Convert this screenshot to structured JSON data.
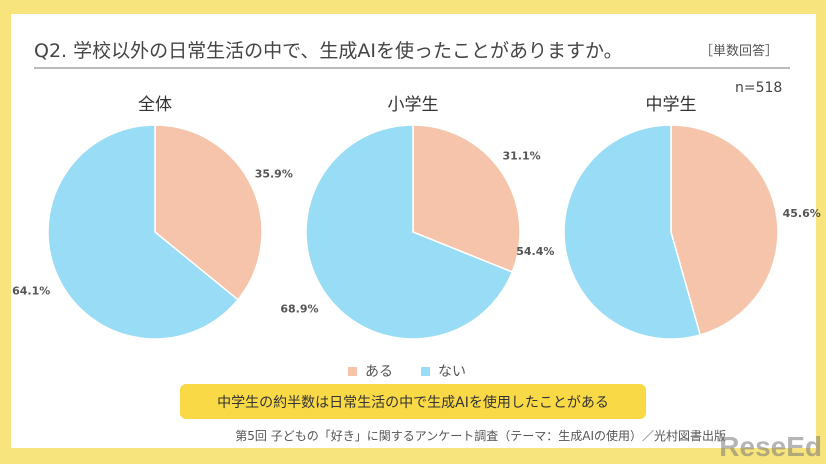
{
  "header": {
    "title": "Q2. 学校以外の日常生活の中で、生成AIを使ったことがありますか。",
    "tag": "［単数回答］",
    "n": "n=518"
  },
  "chart_data": [
    {
      "type": "pie",
      "title": "全体",
      "categories": [
        "ある",
        "ない"
      ],
      "values": [
        35.9,
        64.1
      ],
      "labels": [
        "35.9%",
        "64.1%"
      ]
    },
    {
      "type": "pie",
      "title": "小学生",
      "categories": [
        "ある",
        "ない"
      ],
      "values": [
        31.1,
        68.9
      ],
      "labels": [
        "31.1%",
        "68.9%"
      ]
    },
    {
      "type": "pie",
      "title": "中学生",
      "categories": [
        "ある",
        "ない"
      ],
      "values": [
        45.6,
        54.4
      ],
      "labels": [
        "45.6%",
        "54.4%"
      ]
    }
  ],
  "legend": [
    {
      "label": "ある",
      "color": "#f5c4ab"
    },
    {
      "label": "ない",
      "color": "#99dcf6"
    }
  ],
  "note": "中学生の約半数は日常生活の中で生成AIを使用したことがある",
  "source": "第5回 子どもの「好き」に関するアンケート調査（テーマ：生成AIの使用）／光村図書出版",
  "watermark": "ReseEd"
}
